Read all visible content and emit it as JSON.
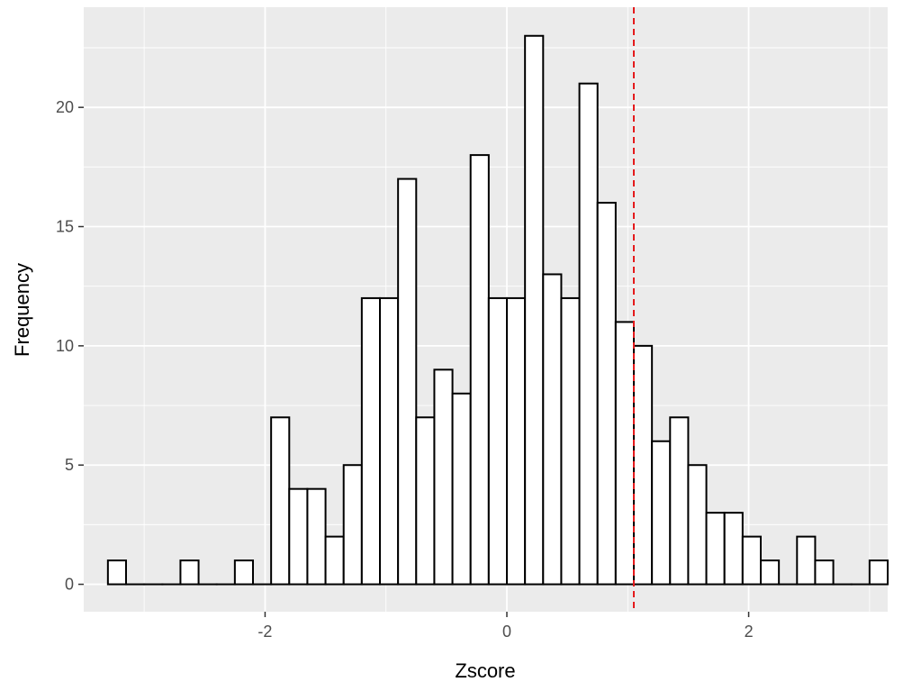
{
  "chart_data": {
    "type": "bar",
    "subtype": "histogram",
    "title": "",
    "xlabel": "Zscore",
    "ylabel": "Frequency",
    "xlim": [
      -3.5,
      3.15
    ],
    "ylim": [
      -1.15,
      24.2
    ],
    "x_ticks": [
      {
        "value": -2,
        "label": "-2"
      },
      {
        "value": 0,
        "label": "0"
      },
      {
        "value": 2,
        "label": "2"
      }
    ],
    "y_ticks": [
      {
        "value": 0,
        "label": "0"
      },
      {
        "value": 5,
        "label": "5"
      },
      {
        "value": 10,
        "label": "10"
      },
      {
        "value": 15,
        "label": "15"
      },
      {
        "value": 20,
        "label": "20"
      }
    ],
    "grid": true,
    "background": "#ebebeb",
    "bar_fill": "#ffffff",
    "bar_stroke": "#000000",
    "bin_start": -3.3,
    "bin_width": 0.15,
    "counts": [
      1,
      0,
      0,
      0,
      1,
      0,
      0,
      1,
      0,
      7,
      4,
      4,
      2,
      5,
      12,
      12,
      17,
      7,
      9,
      8,
      18,
      12,
      12,
      23,
      13,
      12,
      21,
      16,
      11,
      10,
      6,
      7,
      5,
      3,
      3,
      2,
      1,
      0,
      2,
      1,
      0,
      0,
      1
    ],
    "reference_line": {
      "x": 1.05,
      "color": "#e41a1c",
      "style": "dashed"
    }
  }
}
